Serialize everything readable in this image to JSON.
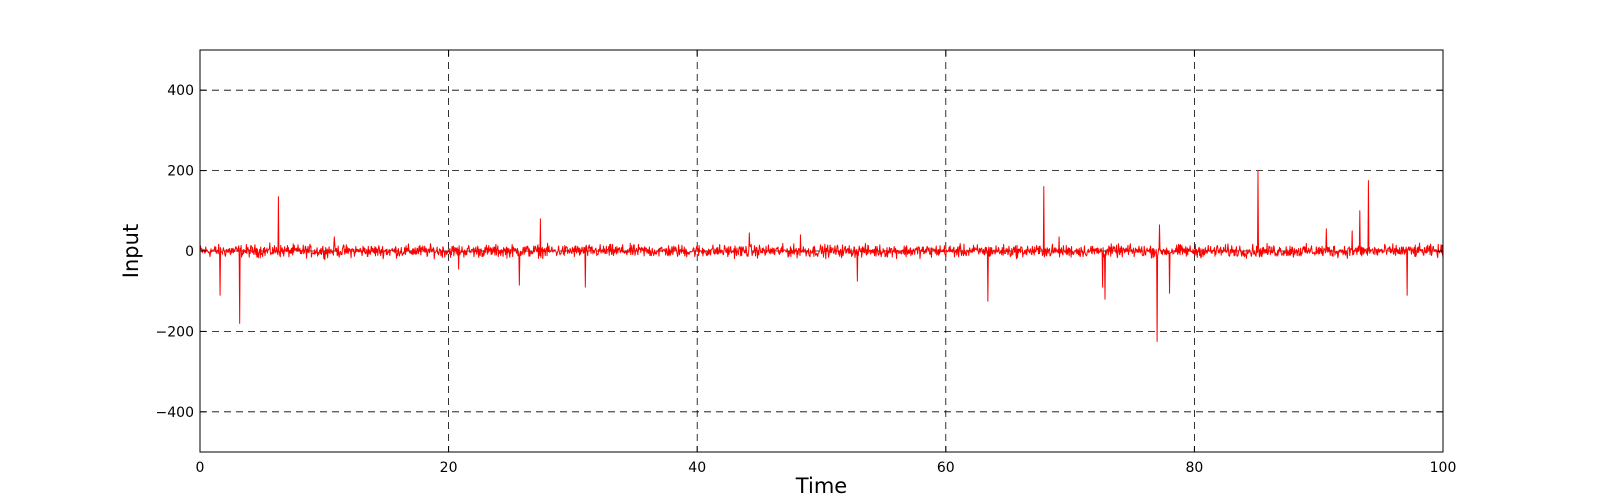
{
  "chart_data": {
    "type": "line",
    "title": "",
    "xlabel": "Time",
    "ylabel": "Input",
    "xlim": [
      0,
      100
    ],
    "ylim": [
      -500,
      500
    ],
    "xticks": [
      0,
      20,
      40,
      60,
      80,
      100
    ],
    "yticks": [
      -400,
      -200,
      0,
      200,
      400
    ],
    "x_tick_labels": [
      "0",
      "20",
      "40",
      "60",
      "80",
      "100"
    ],
    "y_tick_labels": [
      "−400",
      "−200",
      "0",
      "200",
      "400"
    ],
    "grid": true,
    "legend": "none",
    "series": [
      {
        "color": "#ff0000",
        "noise_amplitude": 15,
        "spikes": [
          {
            "x": 1.6,
            "y": -110
          },
          {
            "x": 3.2,
            "y": -180
          },
          {
            "x": 6.3,
            "y": 135
          },
          {
            "x": 10.8,
            "y": 35
          },
          {
            "x": 20.8,
            "y": -45
          },
          {
            "x": 25.7,
            "y": -85
          },
          {
            "x": 27.4,
            "y": 80
          },
          {
            "x": 31.0,
            "y": -90
          },
          {
            "x": 44.2,
            "y": 45
          },
          {
            "x": 48.3,
            "y": 40
          },
          {
            "x": 52.9,
            "y": -75
          },
          {
            "x": 63.4,
            "y": -125
          },
          {
            "x": 67.9,
            "y": 160
          },
          {
            "x": 69.1,
            "y": 35
          },
          {
            "x": 72.6,
            "y": -90
          },
          {
            "x": 72.8,
            "y": -120
          },
          {
            "x": 77.0,
            "y": -225
          },
          {
            "x": 77.2,
            "y": 65
          },
          {
            "x": 78.0,
            "y": -105
          },
          {
            "x": 85.1,
            "y": 200
          },
          {
            "x": 90.6,
            "y": 55
          },
          {
            "x": 92.7,
            "y": 50
          },
          {
            "x": 93.3,
            "y": 100
          },
          {
            "x": 94.0,
            "y": 175
          },
          {
            "x": 97.1,
            "y": -110
          }
        ]
      }
    ]
  }
}
